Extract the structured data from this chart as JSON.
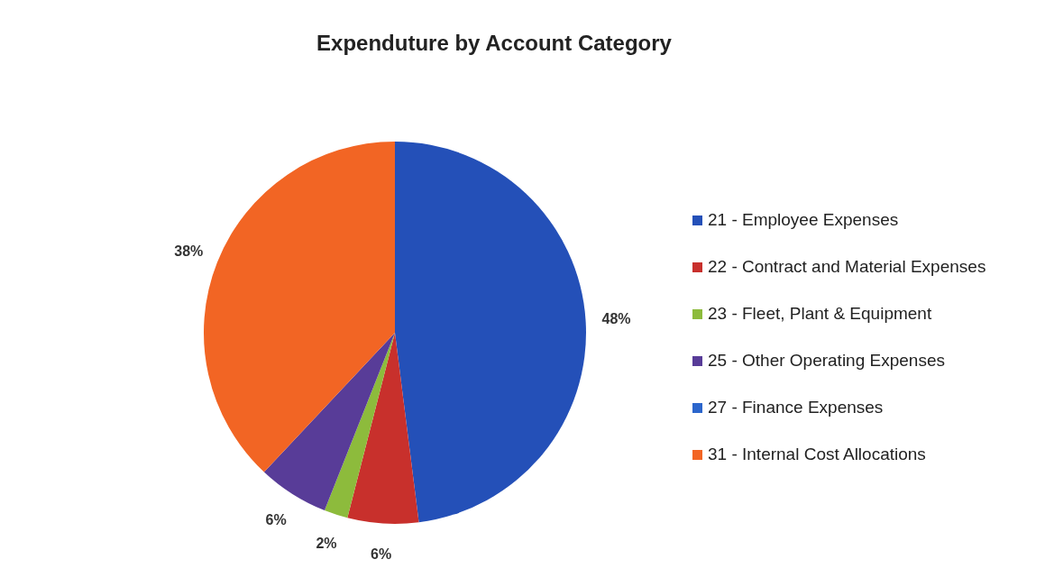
{
  "chart_data": {
    "type": "pie",
    "title": "Expenduture by Account Category",
    "categories": [
      "21 - Employee Expenses",
      "22 - Contract and Material Expenses",
      "23 - Fleet, Plant & Equipment",
      "25 - Other Operating Expenses",
      "27 - Finance Expenses",
      "31 - Internal Cost Allocations"
    ],
    "values": [
      48,
      6,
      2,
      6,
      0,
      38
    ],
    "value_labels": [
      "48%",
      "6%",
      "2%",
      "6%",
      null,
      "38%"
    ],
    "colors": [
      "#2450b8",
      "#c8302c",
      "#8dbb3c",
      "#583c98",
      "#2c66cc",
      "#f26524"
    ],
    "legend": "right"
  }
}
